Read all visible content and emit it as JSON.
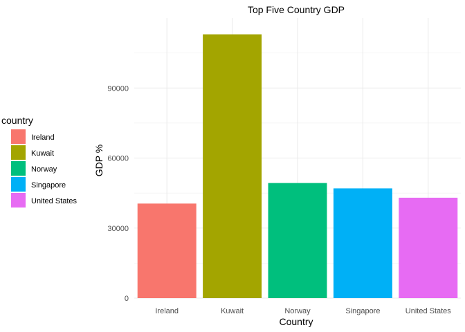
{
  "chart_data": {
    "type": "bar",
    "title": "Top Five Country GDP",
    "xlabel": "Country",
    "ylabel": "GDP %",
    "categories": [
      "Ireland",
      "Kuwait",
      "Norway",
      "Singapore",
      "United States"
    ],
    "values": [
      40500,
      113000,
      49300,
      47000,
      43000
    ],
    "colors": [
      "#F8766D",
      "#A3A500",
      "#00BF7D",
      "#00B0F6",
      "#E76BF3"
    ],
    "ylim": [
      0,
      120000
    ],
    "yticks": [
      0,
      30000,
      60000,
      90000
    ],
    "yminor": [
      15000,
      45000,
      75000,
      105000
    ],
    "grid": true,
    "legend": {
      "title": "country",
      "position": "left",
      "entries": [
        "Ireland",
        "Kuwait",
        "Norway",
        "Singapore",
        "United States"
      ]
    }
  }
}
